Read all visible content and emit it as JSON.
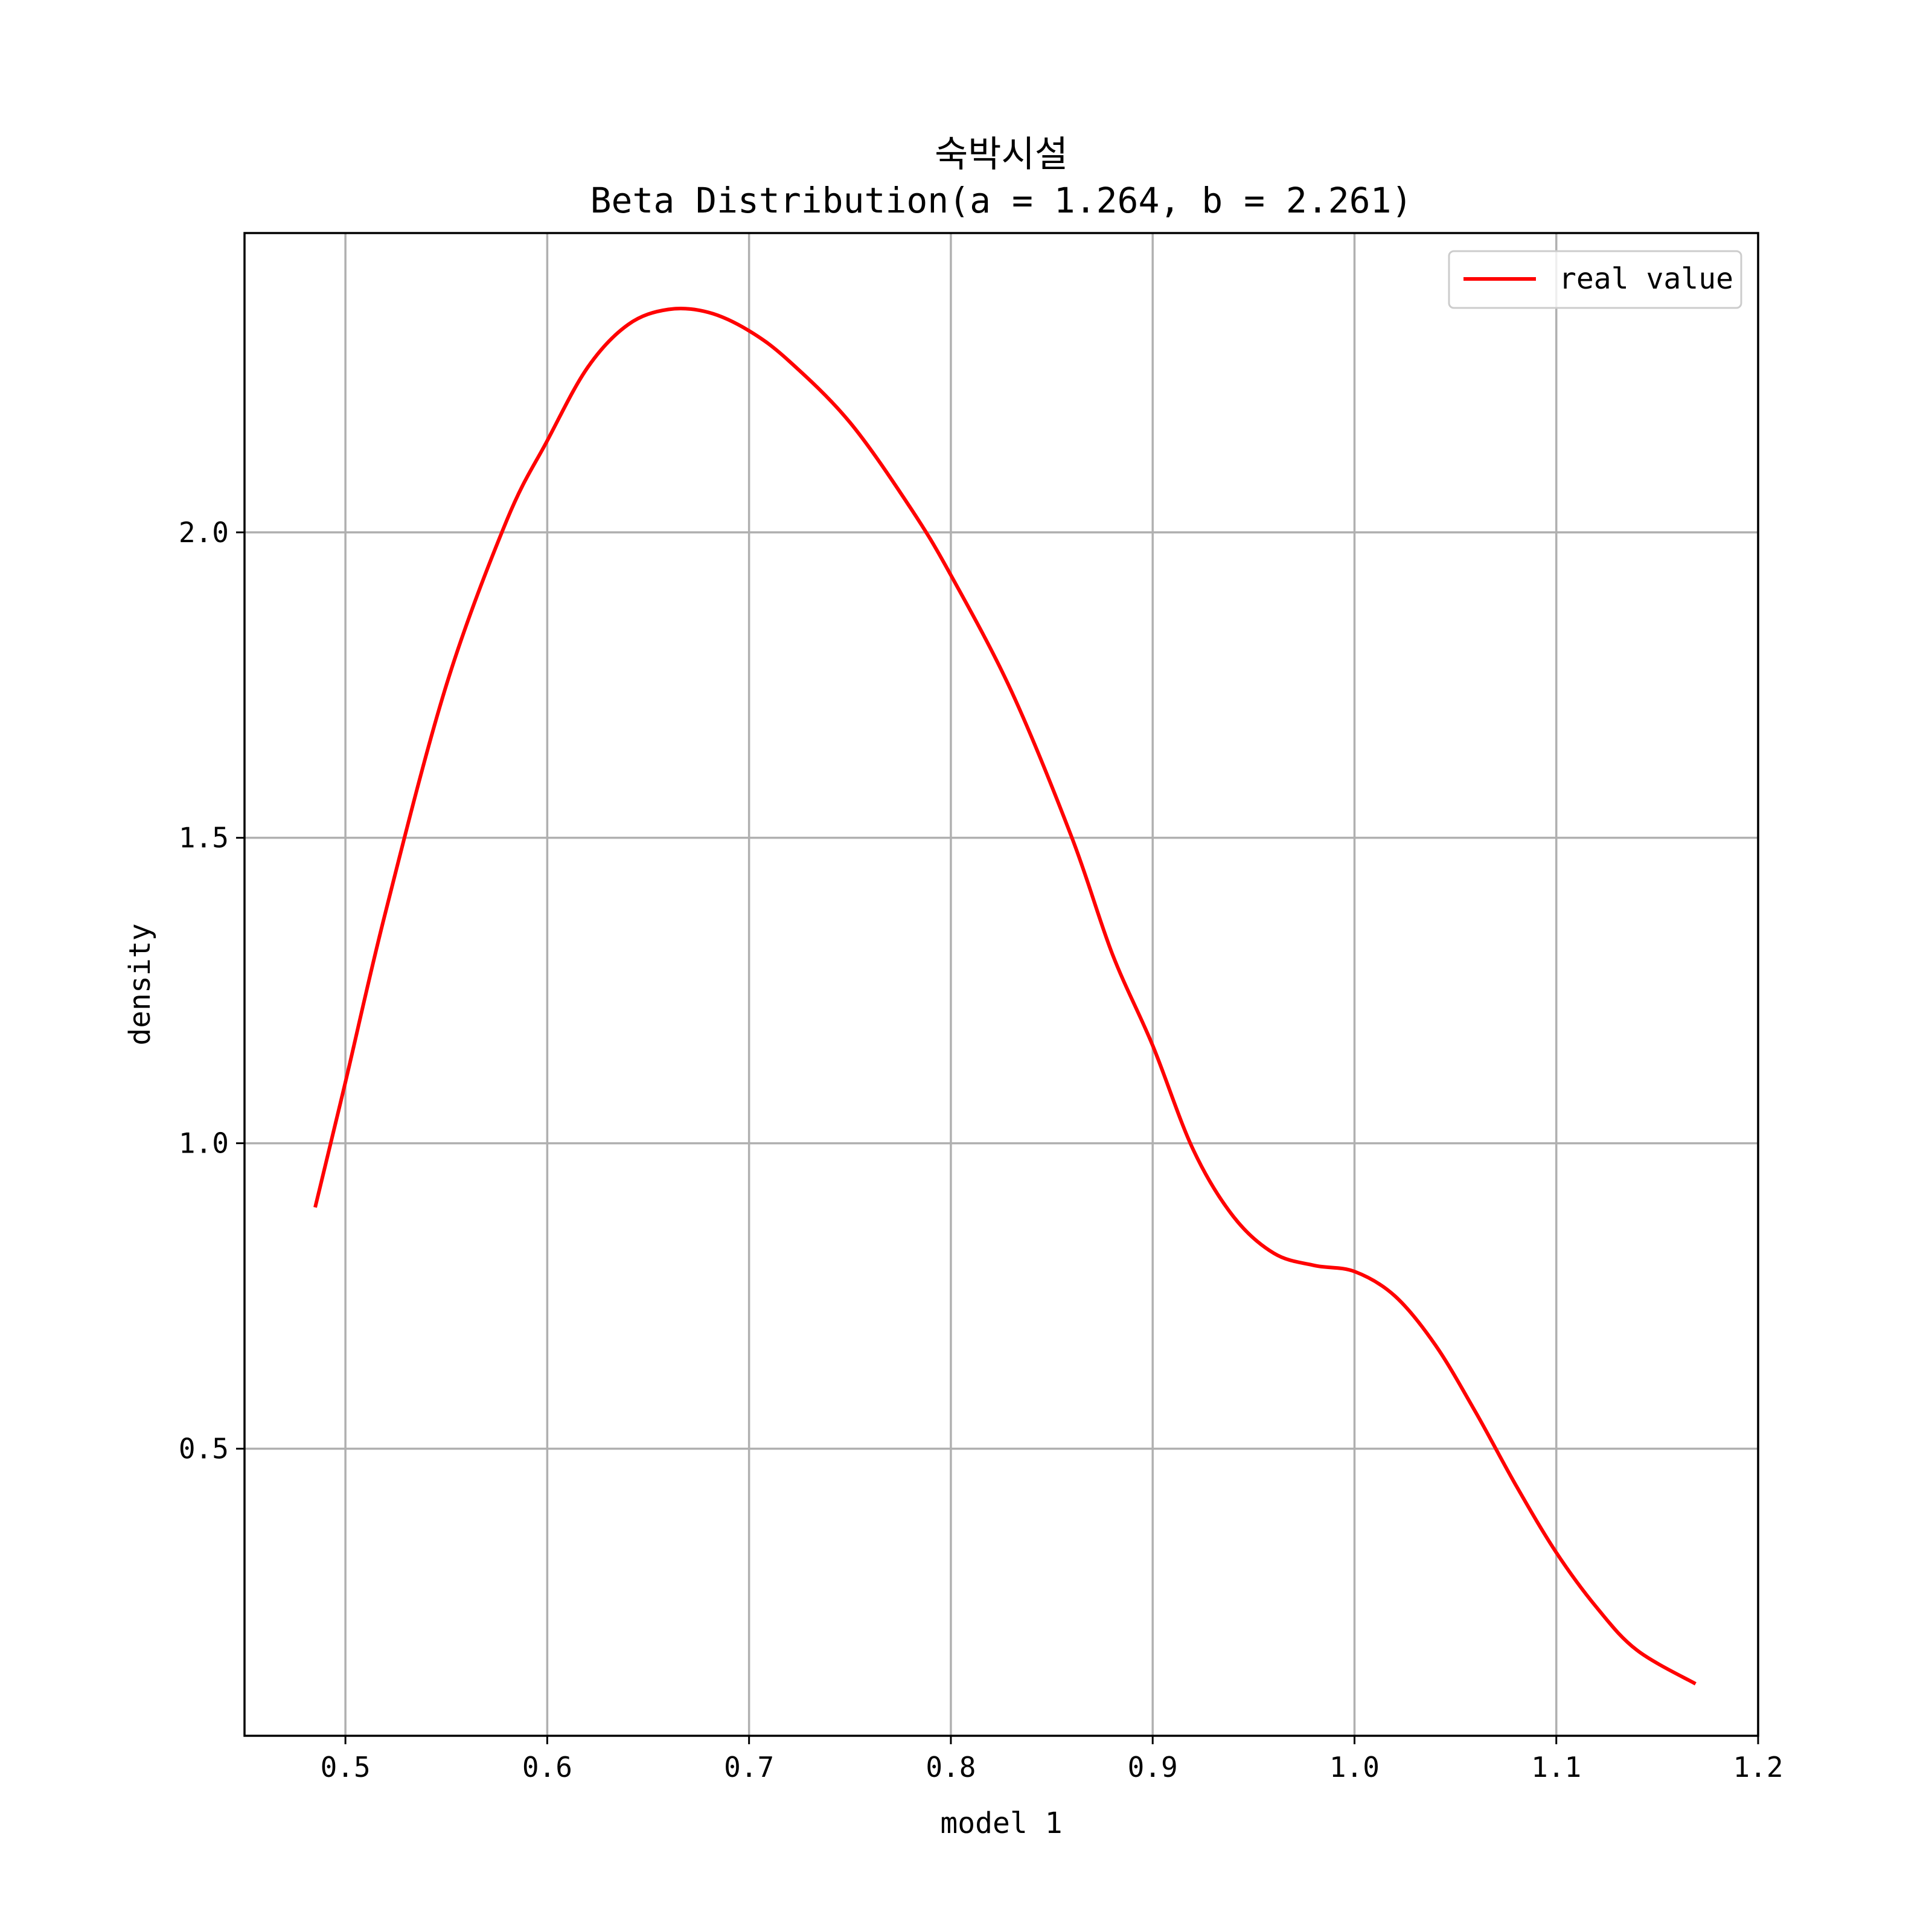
{
  "chart_data": {
    "type": "line",
    "title": "숙박시설",
    "subtitle": "Beta Distribution(a = 1.264, b = 2.261)",
    "xlabel": "model 1",
    "ylabel": "density",
    "xlim": [
      0.45,
      1.2
    ],
    "ylim": [
      0.03,
      2.49
    ],
    "xticks": [
      0.5,
      0.6,
      0.7,
      0.8,
      0.9,
      1.0,
      1.1,
      1.2
    ],
    "xtick_labels": [
      "0.5",
      "0.6",
      "0.7",
      "0.8",
      "0.9",
      "1.0",
      "1.1",
      "1.2"
    ],
    "yticks": [
      0.5,
      1.0,
      1.5,
      2.0
    ],
    "ytick_labels": [
      "0.5",
      "1.0",
      "1.5",
      "2.0"
    ],
    "grid": true,
    "legend_position": "top-right",
    "series": [
      {
        "name": "real value",
        "color": "#ff0000",
        "x": [
          0.485,
          0.5,
          0.52,
          0.55,
          0.58,
          0.6,
          0.62,
          0.64,
          0.66,
          0.68,
          0.7,
          0.72,
          0.75,
          0.78,
          0.8,
          0.83,
          0.86,
          0.88,
          0.9,
          0.92,
          0.94,
          0.96,
          0.98,
          1.0,
          1.02,
          1.04,
          1.06,
          1.08,
          1.1,
          1.12,
          1.14,
          1.169
        ],
        "y": [
          0.895,
          1.1,
          1.38,
          1.75,
          2.02,
          2.15,
          2.27,
          2.34,
          2.365,
          2.36,
          2.33,
          2.28,
          2.18,
          2.04,
          1.93,
          1.74,
          1.5,
          1.31,
          1.16,
          0.99,
          0.88,
          0.82,
          0.8,
          0.79,
          0.75,
          0.67,
          0.56,
          0.44,
          0.33,
          0.24,
          0.17,
          0.115
        ]
      }
    ]
  }
}
